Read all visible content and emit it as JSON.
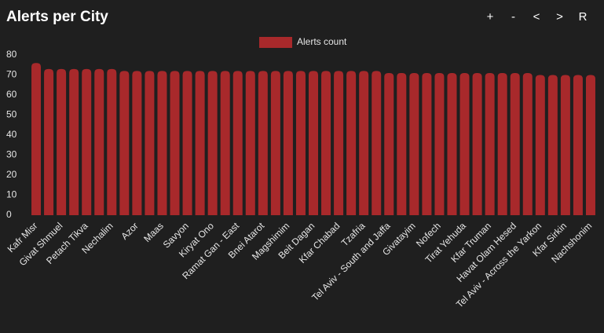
{
  "toolbar": [
    "+",
    "-",
    "<",
    ">",
    "R"
  ],
  "chart_data": {
    "type": "bar",
    "title": "Alerts per City",
    "series": [
      {
        "name": "Alerts count",
        "color": "#a8292b",
        "values": [
          76,
          73,
          73,
          73,
          73,
          73,
          73,
          72,
          72,
          72,
          72,
          72,
          72,
          72,
          72,
          72,
          72,
          72,
          72,
          72,
          72,
          72,
          72,
          72,
          72,
          72,
          72,
          72,
          71,
          71,
          71,
          71,
          71,
          71,
          71,
          71,
          71,
          71,
          71,
          71,
          70,
          70,
          70,
          70,
          70
        ]
      }
    ],
    "categories": [
      "Kafr Misr",
      null,
      "Givat Shmuel",
      null,
      "Petach Tikva",
      null,
      "Nechalim",
      null,
      "Azor",
      null,
      "Maas",
      null,
      "Savyon",
      null,
      "Kiryat Ono",
      null,
      "Ramat Gan - East",
      null,
      "Bnei Atarot",
      null,
      "Magshimim",
      null,
      "Beit Dagan",
      null,
      "Kfar Chabad",
      null,
      "Tzafria",
      null,
      "Tel Aviv - South and Jaffa",
      null,
      "Givatayim",
      null,
      "Nofech",
      null,
      "Tirat Yehuda",
      null,
      "Kfar Truman",
      null,
      "Havat Olam Hesed",
      null,
      "Tel Aviv - Across the Yarkon",
      null,
      "Kfar Sirkin",
      null,
      "Nachshonim"
    ],
    "ylim": [
      0,
      80
    ],
    "yticks": [
      0,
      10,
      20,
      30,
      40,
      50,
      60,
      70,
      80
    ],
    "grid": false,
    "legend": "top"
  }
}
